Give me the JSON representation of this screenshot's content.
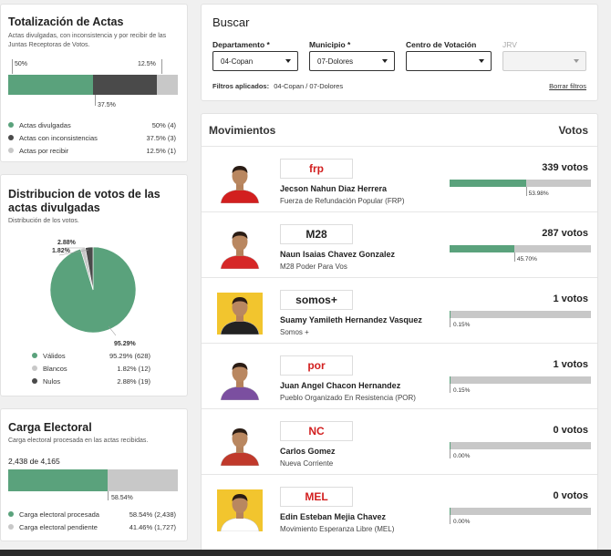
{
  "totalizacion": {
    "title": "Totalización de Actas",
    "subtitle": "Actas divulgadas, con inconsistencia y por recibir de las Juntas Receptoras de Votos.",
    "label_left": "50%",
    "label_right": "12.5%",
    "label_mid": "37.5%",
    "segments": [
      {
        "label": "Actas divulgadas",
        "value": "50% (4)",
        "fraction": 0.5,
        "color": "#5aa27c"
      },
      {
        "label": "Actas con inconsistencias",
        "value": "37.5% (3)",
        "fraction": 0.375,
        "color": "#4a4a4a"
      },
      {
        "label": "Actas por recibir",
        "value": "12.5% (1)",
        "fraction": 0.125,
        "color": "#c8c8c8"
      }
    ]
  },
  "distribucion": {
    "title": "Distribucion de votos de las actas divulgadas",
    "subtitle": "Distribución de los votos.",
    "label_validos": "95.29%",
    "label_nulos": "2.88%",
    "label_blancos": "1.82%",
    "legend": [
      {
        "label": "Válidos",
        "value": "95.29% (628)",
        "fraction": 0.9529,
        "color": "#5aa27c"
      },
      {
        "label": "Blancos",
        "value": "1.82% (12)",
        "fraction": 0.0182,
        "color": "#c8c8c8"
      },
      {
        "label": "Nulos",
        "value": "2.88% (19)",
        "fraction": 0.0288,
        "color": "#4a4a4a"
      }
    ]
  },
  "carga": {
    "title": "Carga Electoral",
    "subtitle": "Carga electoral procesada en las actas recibidas.",
    "count": "2,438 de 4,165",
    "bar_label": "58.54%",
    "fraction": 0.5854,
    "legend": [
      {
        "label": "Carga electoral procesada",
        "value": "58.54% (2,438)",
        "color": "#5aa27c"
      },
      {
        "label": "Carga electoral pendiente",
        "value": "41.46% (1,727)",
        "color": "#c8c8c8"
      }
    ]
  },
  "buscar": {
    "title": "Buscar",
    "departamento_label": "Departamento *",
    "departamento_value": "04-Copan",
    "municipio_label": "Municipio *",
    "municipio_value": "07-Dolores",
    "centro_label": "Centro de Votación",
    "centro_value": "",
    "jrv_label": "JRV",
    "jrv_value": "",
    "filtros_label": "Filtros aplicados:",
    "filtros_value": "04-Copan / 07-Dolores",
    "borrar_label": "Borrar filtros"
  },
  "movimientos": {
    "title": "Movimientos",
    "votos_header": "Votos",
    "candidates": [
      {
        "name": "Jecson Nahun Diaz Herrera",
        "party": "Fuerza de Refundación Popular (FRP)",
        "logo": "frp",
        "votes": "339 votos",
        "pct": "53.98%",
        "fraction": 0.5398,
        "logo_color": "#d21f1f",
        "shirt": "#d21f1f",
        "bg": "#fff"
      },
      {
        "name": "Naun Isaias Chavez Gonzalez",
        "party": "M28 Poder Para Vos",
        "logo": "M28",
        "votes": "287 votos",
        "pct": "45.70%",
        "fraction": 0.457,
        "logo_color": "#222",
        "shirt": "#d62828",
        "bg": "#fff"
      },
      {
        "name": "Suamy Yamileth Hernandez Vasquez",
        "party": "Somos +",
        "logo": "somos+",
        "votes": "1 votos",
        "pct": "0.15%",
        "fraction": 0.0015,
        "logo_color": "#222",
        "shirt": "#222",
        "bg": "#f2c52e"
      },
      {
        "name": "Juan Angel Chacon Hernandez",
        "party": "Pueblo Organizado En Resistencia (POR)",
        "logo": "por",
        "votes": "1 votos",
        "pct": "0.15%",
        "fraction": 0.0015,
        "logo_color": "#d21f1f",
        "shirt": "#7b4fa0",
        "bg": "#fff"
      },
      {
        "name": "Carlos Gomez",
        "party": "Nueva Corriente",
        "logo": "NC",
        "votes": "0 votos",
        "pct": "0.00%",
        "fraction": 0,
        "logo_color": "#d21f1f",
        "shirt": "#c0392b",
        "bg": "#fff"
      },
      {
        "name": "Edin Esteban Mejia Chavez",
        "party": "Movimiento Esperanza Libre (MEL)",
        "logo": "MEL",
        "votes": "0 votos",
        "pct": "0.00%",
        "fraction": 0,
        "logo_color": "#d21f1f",
        "shirt": "#fff",
        "bg": "#f2c52e"
      }
    ]
  }
}
